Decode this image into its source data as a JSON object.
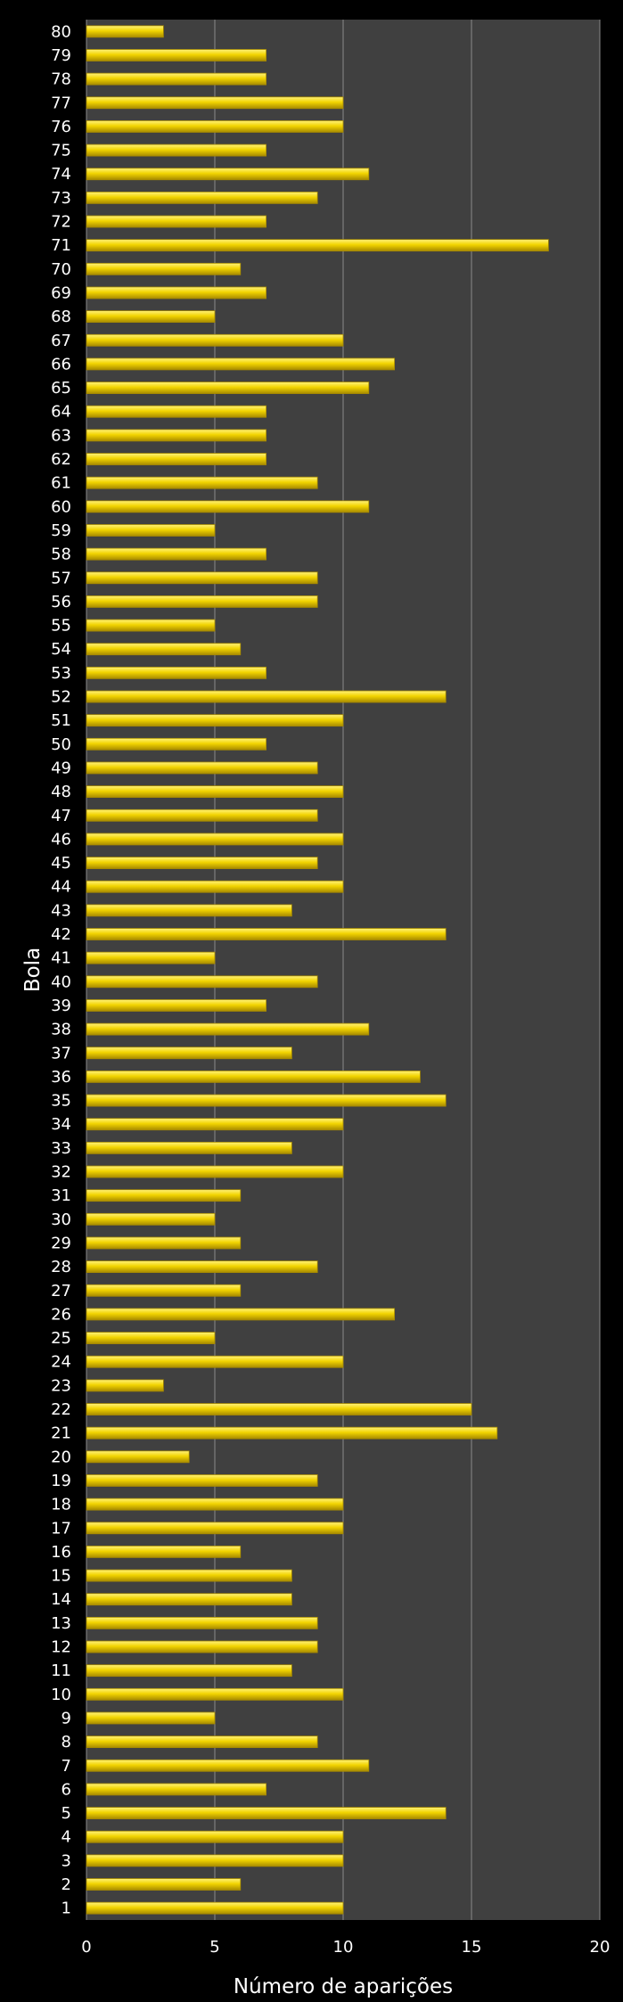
{
  "chart_data": {
    "type": "bar",
    "orientation": "horizontal",
    "title": "",
    "xlabel": "Número de aparições",
    "ylabel": "Bola",
    "xlim": [
      0,
      20
    ],
    "xticks": [
      0,
      5,
      10,
      15,
      20
    ],
    "grid": true,
    "colors": {
      "background": "#000000",
      "plot_area": "#404040",
      "gridline": "#8a8a8a",
      "bar_fill": "#f2d400",
      "bar_highlight": "#fff27a",
      "bar_shadow": "#a78a00",
      "text": "#ffffff"
    },
    "categories": [
      "1",
      "2",
      "3",
      "4",
      "5",
      "6",
      "7",
      "8",
      "9",
      "10",
      "11",
      "12",
      "13",
      "14",
      "15",
      "16",
      "17",
      "18",
      "19",
      "20",
      "21",
      "22",
      "23",
      "24",
      "25",
      "26",
      "27",
      "28",
      "29",
      "30",
      "31",
      "32",
      "33",
      "34",
      "35",
      "36",
      "37",
      "38",
      "39",
      "40",
      "41",
      "42",
      "43",
      "44",
      "45",
      "46",
      "47",
      "48",
      "49",
      "50",
      "51",
      "52",
      "53",
      "54",
      "55",
      "56",
      "57",
      "58",
      "59",
      "60",
      "61",
      "62",
      "63",
      "64",
      "65",
      "66",
      "67",
      "68",
      "69",
      "70",
      "71",
      "72",
      "73",
      "74",
      "75",
      "76",
      "77",
      "78",
      "79",
      "80"
    ],
    "values": [
      10,
      6,
      10,
      10,
      14,
      7,
      11,
      9,
      5,
      10,
      8,
      9,
      9,
      8,
      8,
      6,
      10,
      10,
      9,
      4,
      16,
      15,
      3,
      10,
      5,
      12,
      6,
      9,
      6,
      5,
      6,
      10,
      8,
      10,
      14,
      13,
      8,
      11,
      7,
      9,
      5,
      14,
      8,
      10,
      9,
      10,
      9,
      10,
      9,
      7,
      10,
      14,
      7,
      6,
      5,
      9,
      9,
      7,
      5,
      11,
      9,
      7,
      7,
      7,
      11,
      12,
      10,
      5,
      7,
      6,
      18,
      7,
      9,
      11,
      7,
      10,
      10,
      7,
      7,
      3
    ]
  }
}
